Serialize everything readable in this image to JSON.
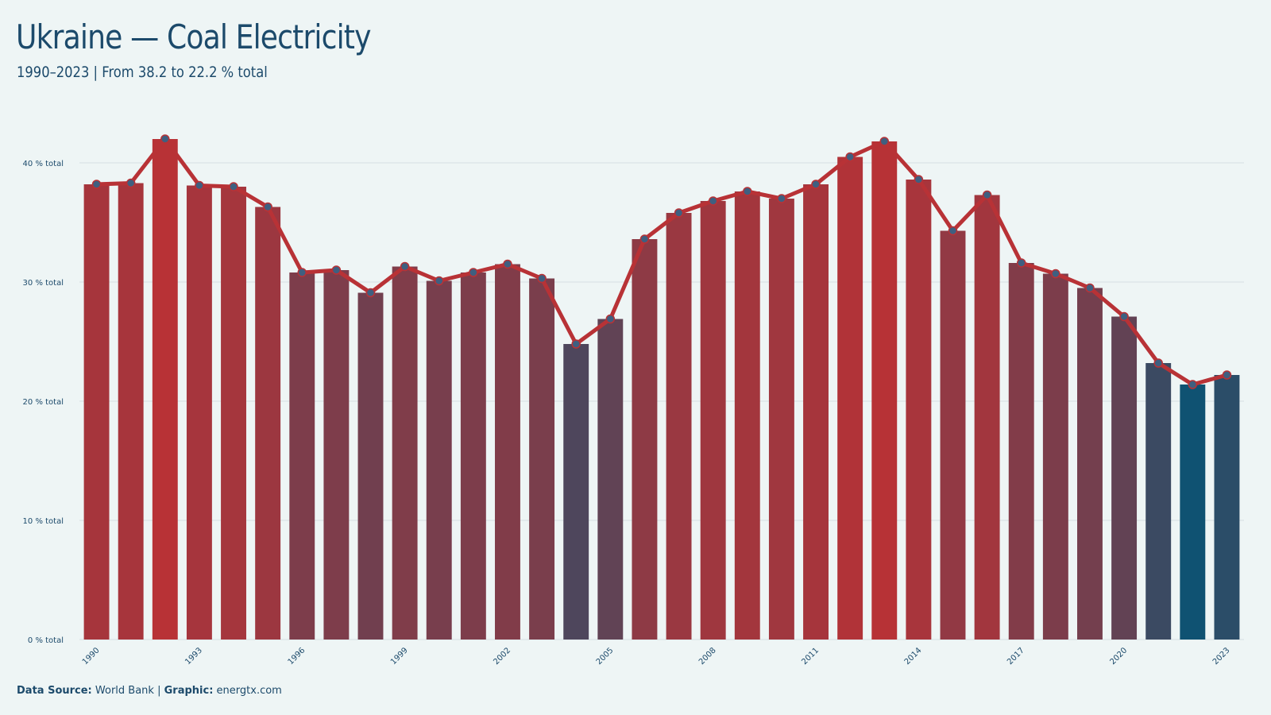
{
  "title": "Ukraine — Coal Electricity",
  "subtitle": "1990–2023 | From 38.2 to 22.2 % total",
  "footer": {
    "source_label": "Data Source:",
    "source_value": "World Bank",
    "separator": "|",
    "graphic_label": "Graphic:",
    "graphic_value": "energtx.com"
  },
  "colors": {
    "high": "#b83236",
    "low": "#0f5272",
    "line": "#b83236",
    "point_fill": "#3f5f80",
    "grid": "#d5dfe2",
    "text": "#1c4a6b",
    "background": "#eef5f5"
  },
  "chart_data": {
    "type": "bar",
    "title": "",
    "xlabel": "",
    "ylabel": "",
    "x": [
      1990,
      1991,
      1992,
      1993,
      1994,
      1995,
      1996,
      1997,
      1998,
      1999,
      2000,
      2001,
      2002,
      2003,
      2004,
      2005,
      2006,
      2007,
      2008,
      2009,
      2010,
      2011,
      2012,
      2013,
      2014,
      2015,
      2016,
      2017,
      2018,
      2019,
      2020,
      2021,
      2022,
      2023
    ],
    "values": [
      38.2,
      38.3,
      42.0,
      38.1,
      38.0,
      36.3,
      30.8,
      31.0,
      29.1,
      31.3,
      30.1,
      30.8,
      31.5,
      30.3,
      24.8,
      26.9,
      33.6,
      35.8,
      36.8,
      37.6,
      37.0,
      38.2,
      40.5,
      41.8,
      38.6,
      34.3,
      37.3,
      31.6,
      30.7,
      29.5,
      27.1,
      23.2,
      21.4,
      22.2
    ],
    "overlay": "line-with-points",
    "x_tick_labels": [
      "1990",
      "1993",
      "1996",
      "1999",
      "2002",
      "2005",
      "2008",
      "2011",
      "2014",
      "2017",
      "2020",
      "2023"
    ],
    "y_ticks": [
      0,
      10,
      20,
      30,
      40
    ],
    "y_tick_labels": [
      "0 % total",
      "10 % total",
      "20 % total",
      "30 % total",
      "40 % total"
    ],
    "ylim": [
      0,
      42.5
    ],
    "grid": "horizontal"
  }
}
